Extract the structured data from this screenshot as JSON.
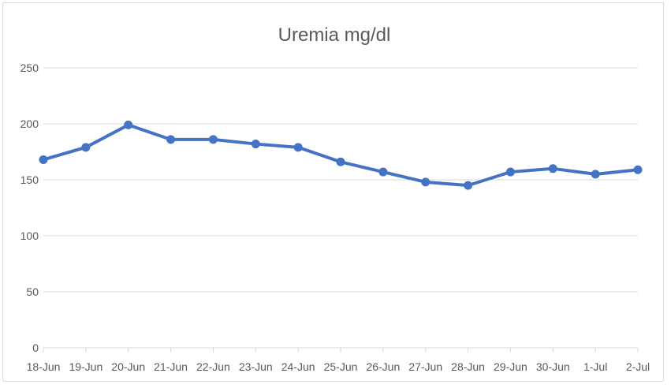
{
  "chart_data": {
    "type": "line",
    "title": "Uremia mg/dl",
    "xlabel": "",
    "ylabel": "",
    "categories": [
      "18-Jun",
      "19-Jun",
      "20-Jun",
      "21-Jun",
      "22-Jun",
      "23-Jun",
      "24-Jun",
      "25-Jun",
      "26-Jun",
      "27-Jun",
      "28-Jun",
      "29-Jun",
      "30-Jun",
      "1-Jul",
      "2-Jul"
    ],
    "series": [
      {
        "values": [
          168,
          179,
          199,
          186,
          186,
          182,
          179,
          166,
          157,
          148,
          145,
          157,
          160,
          155,
          159
        ]
      }
    ],
    "ylim": [
      0,
      250
    ],
    "yticks": [
      0,
      50,
      100,
      150,
      200,
      250
    ],
    "grid": true,
    "legend": "none",
    "line_color": "#4472c4"
  }
}
